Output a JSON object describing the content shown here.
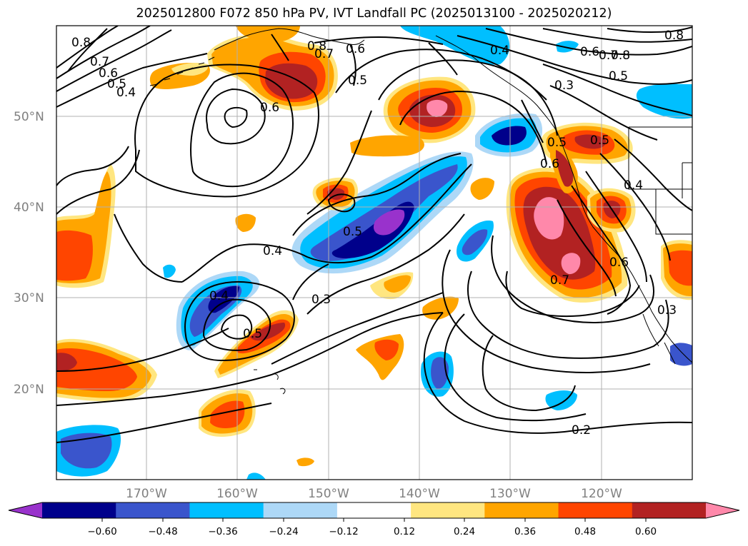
{
  "title": "2025012800 F072 850 hPa PV, IVT Landfall PC (2025013100 - 2025020212)",
  "map": {
    "lon_range": [
      -180,
      -110
    ],
    "lat_range": [
      10,
      60
    ],
    "lat_ticks": [
      {
        "value": 50,
        "label": "50°N"
      },
      {
        "value": 40,
        "label": "40°N"
      },
      {
        "value": 30,
        "label": "30°N"
      },
      {
        "value": 20,
        "label": "20°N"
      }
    ],
    "lon_ticks": [
      {
        "value": -170,
        "label": "170°W"
      },
      {
        "value": -160,
        "label": "160°W"
      },
      {
        "value": -150,
        "label": "150°W"
      },
      {
        "value": -140,
        "label": "140°W"
      },
      {
        "value": -130,
        "label": "130°W"
      },
      {
        "value": -120,
        "label": "120°W"
      }
    ],
    "gridlines": true,
    "contour_labels": [
      "0.8",
      "0.7",
      "0.6",
      "0.5",
      "0.4",
      "0.6",
      "0.8",
      "0.7",
      "0.6",
      "0.5",
      "0.4",
      "0.8",
      "0.7",
      "0.6",
      "0.5",
      "0.3",
      "0.5",
      "0.6",
      "0.5",
      "0.4",
      "0.5",
      "0.4",
      "0.3",
      "0.4",
      "0.5",
      "0.6",
      "0.7",
      "0.3",
      "0.8",
      "0.2"
    ]
  },
  "colorbar": {
    "ticks": [
      "−0.60",
      "−0.48",
      "−0.36",
      "−0.24",
      "−0.12",
      "0.12",
      "0.24",
      "0.36",
      "0.48",
      "0.60"
    ],
    "colors": [
      "#9932cc",
      "#00008b",
      "#3a55cc",
      "#00bfff",
      "#add8f7",
      "#ffffff",
      "#ffe680",
      "#ffa500",
      "#ff4500",
      "#b22222",
      "#ff88aa"
    ],
    "extend": "both"
  },
  "shading_colors": {
    "neg": [
      "#add8f7",
      "#00bfff",
      "#3a55cc",
      "#00008b",
      "#9932cc"
    ],
    "pos": [
      "#ffe680",
      "#ffa500",
      "#ff4500",
      "#b22222",
      "#ff88aa"
    ]
  }
}
